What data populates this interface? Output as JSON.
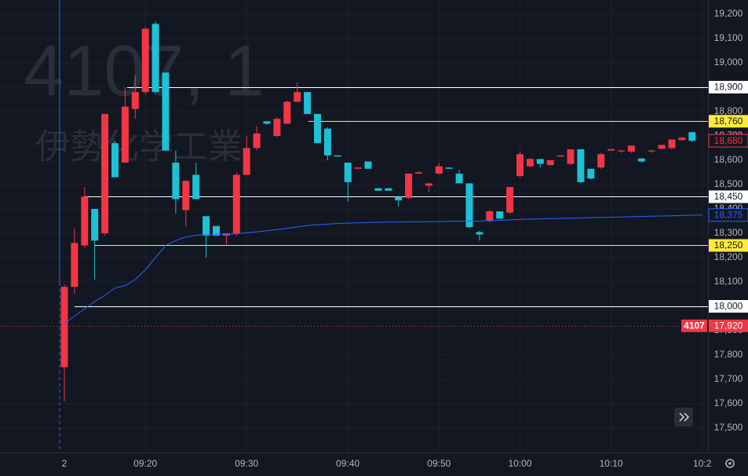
{
  "chart_data": {
    "type": "candlestick",
    "watermark": "4107, 1",
    "watermark_name": "伊勢化学工業",
    "up_color": "#f23645",
    "down_color": "#1ec0d6",
    "categories": [
      "2",
      null,
      null,
      null,
      null,
      null,
      null,
      null,
      "09:20",
      null,
      null,
      null,
      null,
      null,
      null,
      null,
      null,
      null,
      "09:30",
      null,
      null,
      null,
      null,
      null,
      null,
      null,
      null,
      null,
      "09:40",
      null,
      null,
      null,
      null,
      null,
      null,
      null,
      null,
      "09:50",
      null,
      null,
      null,
      null,
      null,
      null,
      null,
      "10:00",
      null,
      null,
      null,
      null,
      null,
      null,
      null,
      null,
      "10:10",
      null,
      null,
      null,
      null,
      null,
      null,
      null,
      null,
      "10:2"
    ],
    "open": [
      17750,
      18080,
      18250,
      18400,
      18300,
      18670,
      18590,
      18810,
      18880,
      19160,
      18960,
      18590,
      18395,
      18540,
      18370,
      18330,
      18290,
      18300,
      18540,
      18650,
      18760,
      18700,
      18750,
      18840,
      18880,
      18790,
      18730,
      18620,
      18590,
      18565,
      18595,
      18485,
      18485,
      18450,
      18445,
      18545,
      18495,
      18545,
      18570,
      18545,
      18505,
      18305,
      18350,
      18390,
      18385,
      18535,
      18575,
      18605,
      18580,
      18615,
      18585,
      18645,
      18565,
      18570,
      18640,
      18636,
      18635,
      18607,
      18636,
      18647,
      18650,
      18683,
      18715,
      null
    ],
    "high": [
      18090,
      18320,
      18490,
      18400,
      18790,
      18680,
      18900,
      18950,
      19150,
      19170,
      18960,
      18640,
      18520,
      18590,
      18370,
      18330,
      18300,
      18550,
      18700,
      18740,
      18760,
      18775,
      18845,
      18920,
      18880,
      18790,
      18735,
      18620,
      18590,
      18570,
      18595,
      18485,
      18485,
      18450,
      18545,
      18555,
      18505,
      18590,
      18570,
      18560,
      18505,
      18310,
      18395,
      18390,
      18490,
      18635,
      18610,
      18605,
      18600,
      18620,
      18645,
      18645,
      18565,
      18630,
      18646,
      18640,
      18660,
      18610,
      18640,
      18663,
      18685,
      18693,
      18717,
      null
    ],
    "low": [
      17610,
      18050,
      18240,
      18110,
      18290,
      18530,
      18590,
      18770,
      18870,
      18870,
      18640,
      18380,
      18330,
      18440,
      18200,
      18290,
      18250,
      18290,
      18540,
      18640,
      18745,
      18695,
      18750,
      18840,
      18790,
      18670,
      18600,
      18615,
      18430,
      18565,
      18565,
      18475,
      18475,
      18410,
      18440,
      18545,
      18470,
      18540,
      18565,
      18505,
      18320,
      18270,
      18345,
      18360,
      18380,
      18530,
      18570,
      18570,
      18580,
      18615,
      18580,
      18505,
      18520,
      18565,
      18640,
      18630,
      18630,
      18590,
      18630,
      18645,
      18645,
      18680,
      18675,
      null
    ],
    "close": [
      18080,
      18260,
      18450,
      18270,
      18790,
      18530,
      18820,
      18880,
      19140,
      18880,
      18640,
      18440,
      18515,
      18440,
      18290,
      18290,
      18300,
      18540,
      18650,
      18710,
      18750,
      18770,
      18840,
      18880,
      18790,
      18670,
      18620,
      18615,
      18510,
      18570,
      18565,
      18475,
      18475,
      18435,
      18545,
      18550,
      18505,
      18575,
      18565,
      18505,
      18325,
      18295,
      18390,
      18360,
      18490,
      18625,
      18605,
      18585,
      18600,
      18620,
      18645,
      18510,
      18525,
      18625,
      18646,
      18640,
      18660,
      18595,
      18640,
      18663,
      18685,
      18693,
      18680,
      null
    ],
    "vwap": {
      "color": "#2962ff",
      "values": [
        17930,
        17960,
        17990,
        18020,
        18045,
        18075,
        18085,
        18110,
        18150,
        18200,
        18250,
        18270,
        18285,
        18292,
        18294,
        18295,
        18296,
        18298,
        18302,
        18306,
        18310,
        18315,
        18320,
        18326,
        18332,
        18335,
        18338,
        18340,
        18342,
        18343,
        18344,
        18345,
        18346,
        18346,
        18347,
        18347,
        18348,
        18348,
        18349,
        18349,
        18350,
        18350,
        18352,
        18353,
        18355,
        18357,
        18358,
        18359,
        18360,
        18361,
        18362,
        18363,
        18364,
        18365,
        18366,
        18367,
        18368,
        18369,
        18370,
        18371,
        18372,
        18373,
        18374,
        18375
      ],
      "last": {
        "value": 18375,
        "label": "18,375"
      }
    },
    "levels": [
      {
        "value": 18900,
        "label": "18,900",
        "color": "#ffffff"
      },
      {
        "value": 18760,
        "label": "18,760",
        "color": "#ffeb3b"
      },
      {
        "value": 18450,
        "label": "18,450",
        "color": "#ffffff"
      },
      {
        "value": 18250,
        "label": "18,250",
        "color": "#ffeb3b"
      },
      {
        "value": 18000,
        "label": "18,000",
        "color": "#ffffff"
      }
    ],
    "last_close": {
      "value": 18680,
      "label": "18,680"
    },
    "alert": {
      "symbol": "4107",
      "value": 17920,
      "label": "17,920",
      "color": "#f23645"
    },
    "ylim": [
      17400,
      19258
    ],
    "yticks": [
      {
        "value": 17500,
        "label": "17,500"
      },
      {
        "value": 17600,
        "label": "17,600"
      },
      {
        "value": 17700,
        "label": "17,700"
      },
      {
        "value": 17800,
        "label": "17,800"
      },
      {
        "value": 17900,
        "label": "17,900"
      },
      {
        "value": 18000,
        "label": "18,000"
      },
      {
        "value": 18100,
        "label": "18,100"
      },
      {
        "value": 18200,
        "label": "18,200"
      },
      {
        "value": 18300,
        "label": "18,300"
      },
      {
        "value": 18400,
        "label": "18,400"
      },
      {
        "value": 18500,
        "label": "18,500"
      },
      {
        "value": 18600,
        "label": "18,600"
      },
      {
        "value": 18700,
        "label": "18,700"
      },
      {
        "value": 18800,
        "label": "18,800"
      },
      {
        "value": 18900,
        "label": "18,900"
      },
      {
        "value": 19000,
        "label": "19,000"
      },
      {
        "value": 19100,
        "label": "19,100"
      },
      {
        "value": 19200,
        "label": "19,200"
      }
    ],
    "grid": true
  }
}
